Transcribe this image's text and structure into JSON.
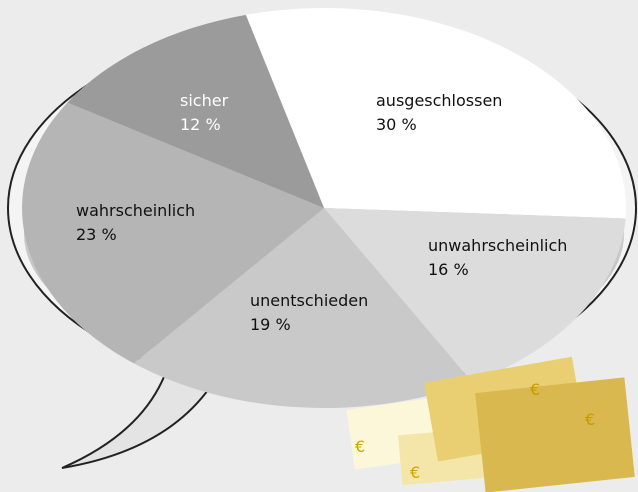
{
  "chart_data": {
    "type": "pie",
    "categories": [
      "ausgeschlossen",
      "unwahrscheinlich",
      "unentschieden",
      "wahrscheinlich",
      "sicher"
    ],
    "values": [
      30,
      16,
      19,
      23,
      12
    ],
    "value_labels": [
      "30 %",
      "16 %",
      "19 %",
      "23 %",
      "12 %"
    ],
    "colors": [
      "#ffffff",
      "#dcdcdc",
      "#c9c9c9",
      "#b5b5b5",
      "#9b9b9b"
    ]
  }
}
